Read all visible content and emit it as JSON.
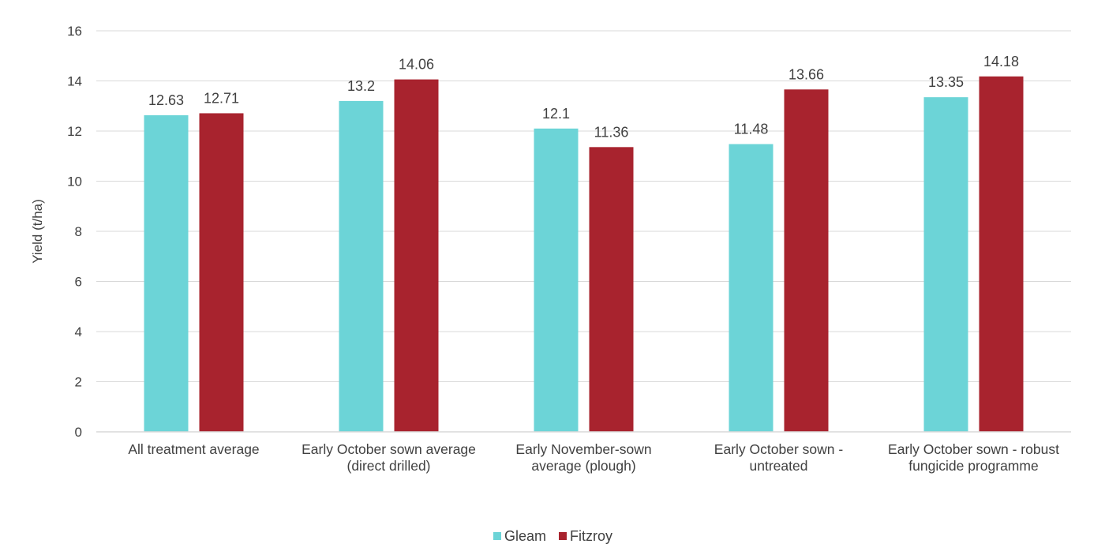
{
  "chart_data": {
    "type": "bar",
    "title": "",
    "xlabel": "",
    "ylabel": "Yield (t/ha)",
    "ylim": [
      0,
      16
    ],
    "yticks": [
      0,
      2,
      4,
      6,
      8,
      10,
      12,
      14,
      16
    ],
    "grid": true,
    "legend_position": "bottom",
    "categories": [
      [
        "All treatment average"
      ],
      [
        "Early October sown average",
        "(direct drilled)"
      ],
      [
        "Early November-sown",
        "average (plough)"
      ],
      [
        "Early October sown -",
        "untreated"
      ],
      [
        "Early October sown - robust",
        "fungicide programme"
      ]
    ],
    "series": [
      {
        "name": "Gleam",
        "color": "#6cd4d7",
        "values": [
          12.63,
          13.2,
          12.1,
          11.48,
          13.35
        ]
      },
      {
        "name": "Fitzroy",
        "color": "#a8232e",
        "values": [
          12.71,
          14.06,
          11.36,
          13.66,
          14.18
        ]
      }
    ]
  }
}
